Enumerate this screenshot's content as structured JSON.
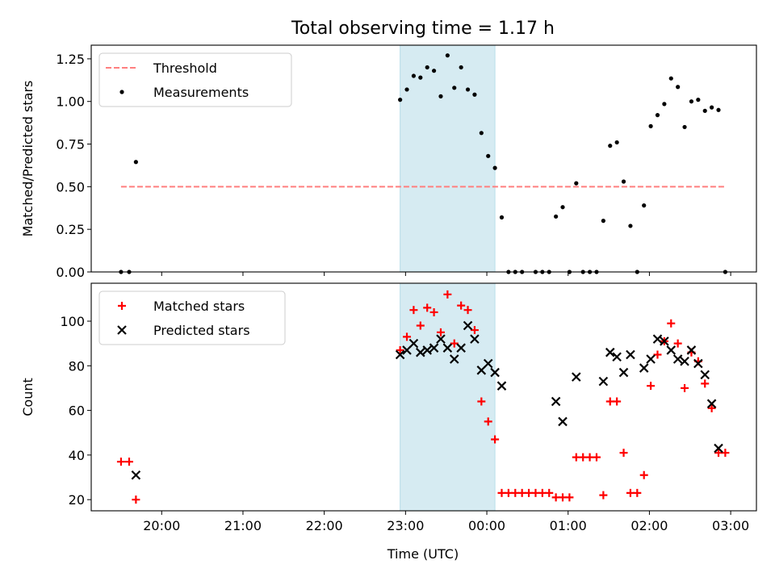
{
  "figure": {
    "title": "Total observing time = 1.17 h",
    "xlabel": "Time (UTC)"
  },
  "chart_data": [
    {
      "type": "scatter",
      "name": "ratio-panel",
      "ylabel": "Matched/Predicted stars",
      "xlim": [
        "19:08",
        "03:19"
      ],
      "ylim": [
        0,
        1.33
      ],
      "yticks": [
        0.0,
        0.25,
        0.5,
        0.75,
        1.0,
        1.25
      ],
      "ytick_labels": [
        "0.00",
        "0.25",
        "0.50",
        "0.75",
        "1.00",
        "1.25"
      ],
      "legend_position": "top-left",
      "shaded_span": {
        "start": "22:56",
        "end": "00:06",
        "color": "#add8e6"
      },
      "series": [
        {
          "name": "Threshold",
          "kind": "dashed-line",
          "color": "#ff7f7f",
          "points": [
            [
              "19:30",
              0.5
            ],
            [
              "02:56",
              0.5
            ]
          ]
        },
        {
          "name": "Measurements",
          "kind": "dots",
          "color": "#000000",
          "points": [
            [
              "19:30",
              0.0
            ],
            [
              "19:36",
              0.0
            ],
            [
              "19:41",
              0.645
            ],
            [
              "22:56",
              1.01
            ],
            [
              "23:01",
              1.07
            ],
            [
              "23:06",
              1.15
            ],
            [
              "23:11",
              1.14
            ],
            [
              "23:16",
              1.2
            ],
            [
              "23:21",
              1.18
            ],
            [
              "23:26",
              1.03
            ],
            [
              "23:31",
              1.27
            ],
            [
              "23:36",
              1.08
            ],
            [
              "23:41",
              1.2
            ],
            [
              "23:46",
              1.07
            ],
            [
              "23:51",
              1.04
            ],
            [
              "23:56",
              0.815
            ],
            [
              "00:01",
              0.68
            ],
            [
              "00:06",
              0.61
            ],
            [
              "00:11",
              0.32
            ],
            [
              "00:16",
              0.0
            ],
            [
              "00:21",
              0.0
            ],
            [
              "00:26",
              0.0
            ],
            [
              "00:36",
              0.0
            ],
            [
              "00:41",
              0.0
            ],
            [
              "00:46",
              0.0
            ],
            [
              "00:51",
              0.325
            ],
            [
              "00:56",
              0.38
            ],
            [
              "01:01",
              0.0
            ],
            [
              "01:06",
              0.52
            ],
            [
              "01:11",
              0.0
            ],
            [
              "01:16",
              0.0
            ],
            [
              "01:21",
              0.0
            ],
            [
              "01:26",
              0.3
            ],
            [
              "01:31",
              0.74
            ],
            [
              "01:36",
              0.76
            ],
            [
              "01:41",
              0.53
            ],
            [
              "01:46",
              0.27
            ],
            [
              "01:51",
              0.0
            ],
            [
              "01:56",
              0.39
            ],
            [
              "02:01",
              0.855
            ],
            [
              "02:06",
              0.92
            ],
            [
              "02:11",
              0.985
            ],
            [
              "02:16",
              1.135
            ],
            [
              "02:21",
              1.085
            ],
            [
              "02:26",
              0.85
            ],
            [
              "02:31",
              1.0
            ],
            [
              "02:36",
              1.01
            ],
            [
              "02:41",
              0.945
            ],
            [
              "02:46",
              0.965
            ],
            [
              "02:51",
              0.95
            ],
            [
              "02:56",
              0.0
            ]
          ]
        }
      ]
    },
    {
      "type": "scatter",
      "name": "count-panel",
      "ylabel": "Count",
      "xlim": [
        "19:08",
        "03:19"
      ],
      "ylim": [
        15,
        117
      ],
      "yticks": [
        20,
        40,
        60,
        80,
        100
      ],
      "ytick_labels": [
        "20",
        "40",
        "60",
        "80",
        "100"
      ],
      "xticks": [
        "20:00",
        "21:00",
        "22:00",
        "23:00",
        "00:00",
        "01:00",
        "02:00",
        "03:00"
      ],
      "xtick_labels": [
        "20:00",
        "21:00",
        "22:00",
        "23:00",
        "00:00",
        "01:00",
        "02:00",
        "03:00"
      ],
      "legend_position": "top-left",
      "shaded_span": {
        "start": "22:56",
        "end": "00:06",
        "color": "#add8e6"
      },
      "series": [
        {
          "name": "Matched stars",
          "kind": "plus",
          "color": "#ff0000",
          "points": [
            [
              "19:30",
              37
            ],
            [
              "19:36",
              37
            ],
            [
              "19:41",
              20
            ],
            [
              "22:56",
              87
            ],
            [
              "23:01",
              93
            ],
            [
              "23:06",
              105
            ],
            [
              "23:11",
              98
            ],
            [
              "23:16",
              106
            ],
            [
              "23:21",
              104
            ],
            [
              "23:26",
              95
            ],
            [
              "23:31",
              112
            ],
            [
              "23:36",
              90
            ],
            [
              "23:41",
              107
            ],
            [
              "23:46",
              105
            ],
            [
              "23:51",
              96
            ],
            [
              "23:56",
              64
            ],
            [
              "00:01",
              55
            ],
            [
              "00:06",
              47
            ],
            [
              "00:11",
              23
            ],
            [
              "00:16",
              23
            ],
            [
              "00:21",
              23
            ],
            [
              "00:26",
              23
            ],
            [
              "00:31",
              23
            ],
            [
              "00:36",
              23
            ],
            [
              "00:41",
              23
            ],
            [
              "00:46",
              23
            ],
            [
              "00:51",
              21
            ],
            [
              "00:56",
              21
            ],
            [
              "01:01",
              21
            ],
            [
              "01:06",
              39
            ],
            [
              "01:11",
              39
            ],
            [
              "01:16",
              39
            ],
            [
              "01:21",
              39
            ],
            [
              "01:26",
              22
            ],
            [
              "01:31",
              64
            ],
            [
              "01:36",
              64
            ],
            [
              "01:41",
              41
            ],
            [
              "01:46",
              23
            ],
            [
              "01:51",
              23
            ],
            [
              "01:56",
              31
            ],
            [
              "02:01",
              71
            ],
            [
              "02:06",
              85
            ],
            [
              "02:11",
              91
            ],
            [
              "02:16",
              99
            ],
            [
              "02:21",
              90
            ],
            [
              "02:26",
              70
            ],
            [
              "02:31",
              86
            ],
            [
              "02:36",
              82
            ],
            [
              "02:41",
              72
            ],
            [
              "02:46",
              61
            ],
            [
              "02:51",
              41
            ],
            [
              "02:56",
              41
            ]
          ]
        },
        {
          "name": "Predicted stars",
          "kind": "x",
          "color": "#000000",
          "points": [
            [
              "19:41",
              31
            ],
            [
              "22:56",
              85
            ],
            [
              "23:01",
              87
            ],
            [
              "23:06",
              90
            ],
            [
              "23:11",
              86
            ],
            [
              "23:16",
              87
            ],
            [
              "23:21",
              88
            ],
            [
              "23:26",
              92
            ],
            [
              "23:31",
              88
            ],
            [
              "23:36",
              83
            ],
            [
              "23:41",
              88
            ],
            [
              "23:46",
              98
            ],
            [
              "23:51",
              92
            ],
            [
              "23:56",
              78
            ],
            [
              "00:01",
              81
            ],
            [
              "00:06",
              77
            ],
            [
              "00:11",
              71
            ],
            [
              "00:51",
              64
            ],
            [
              "00:56",
              55
            ],
            [
              "01:06",
              75
            ],
            [
              "01:26",
              73
            ],
            [
              "01:31",
              86
            ],
            [
              "01:36",
              84
            ],
            [
              "01:41",
              77
            ],
            [
              "01:46",
              85
            ],
            [
              "01:56",
              79
            ],
            [
              "02:01",
              83
            ],
            [
              "02:06",
              92
            ],
            [
              "02:11",
              91
            ],
            [
              "02:16",
              87
            ],
            [
              "02:21",
              83
            ],
            [
              "02:26",
              82
            ],
            [
              "02:31",
              87
            ],
            [
              "02:36",
              81
            ],
            [
              "02:41",
              76
            ],
            [
              "02:46",
              63
            ],
            [
              "02:51",
              43
            ]
          ]
        }
      ]
    }
  ]
}
